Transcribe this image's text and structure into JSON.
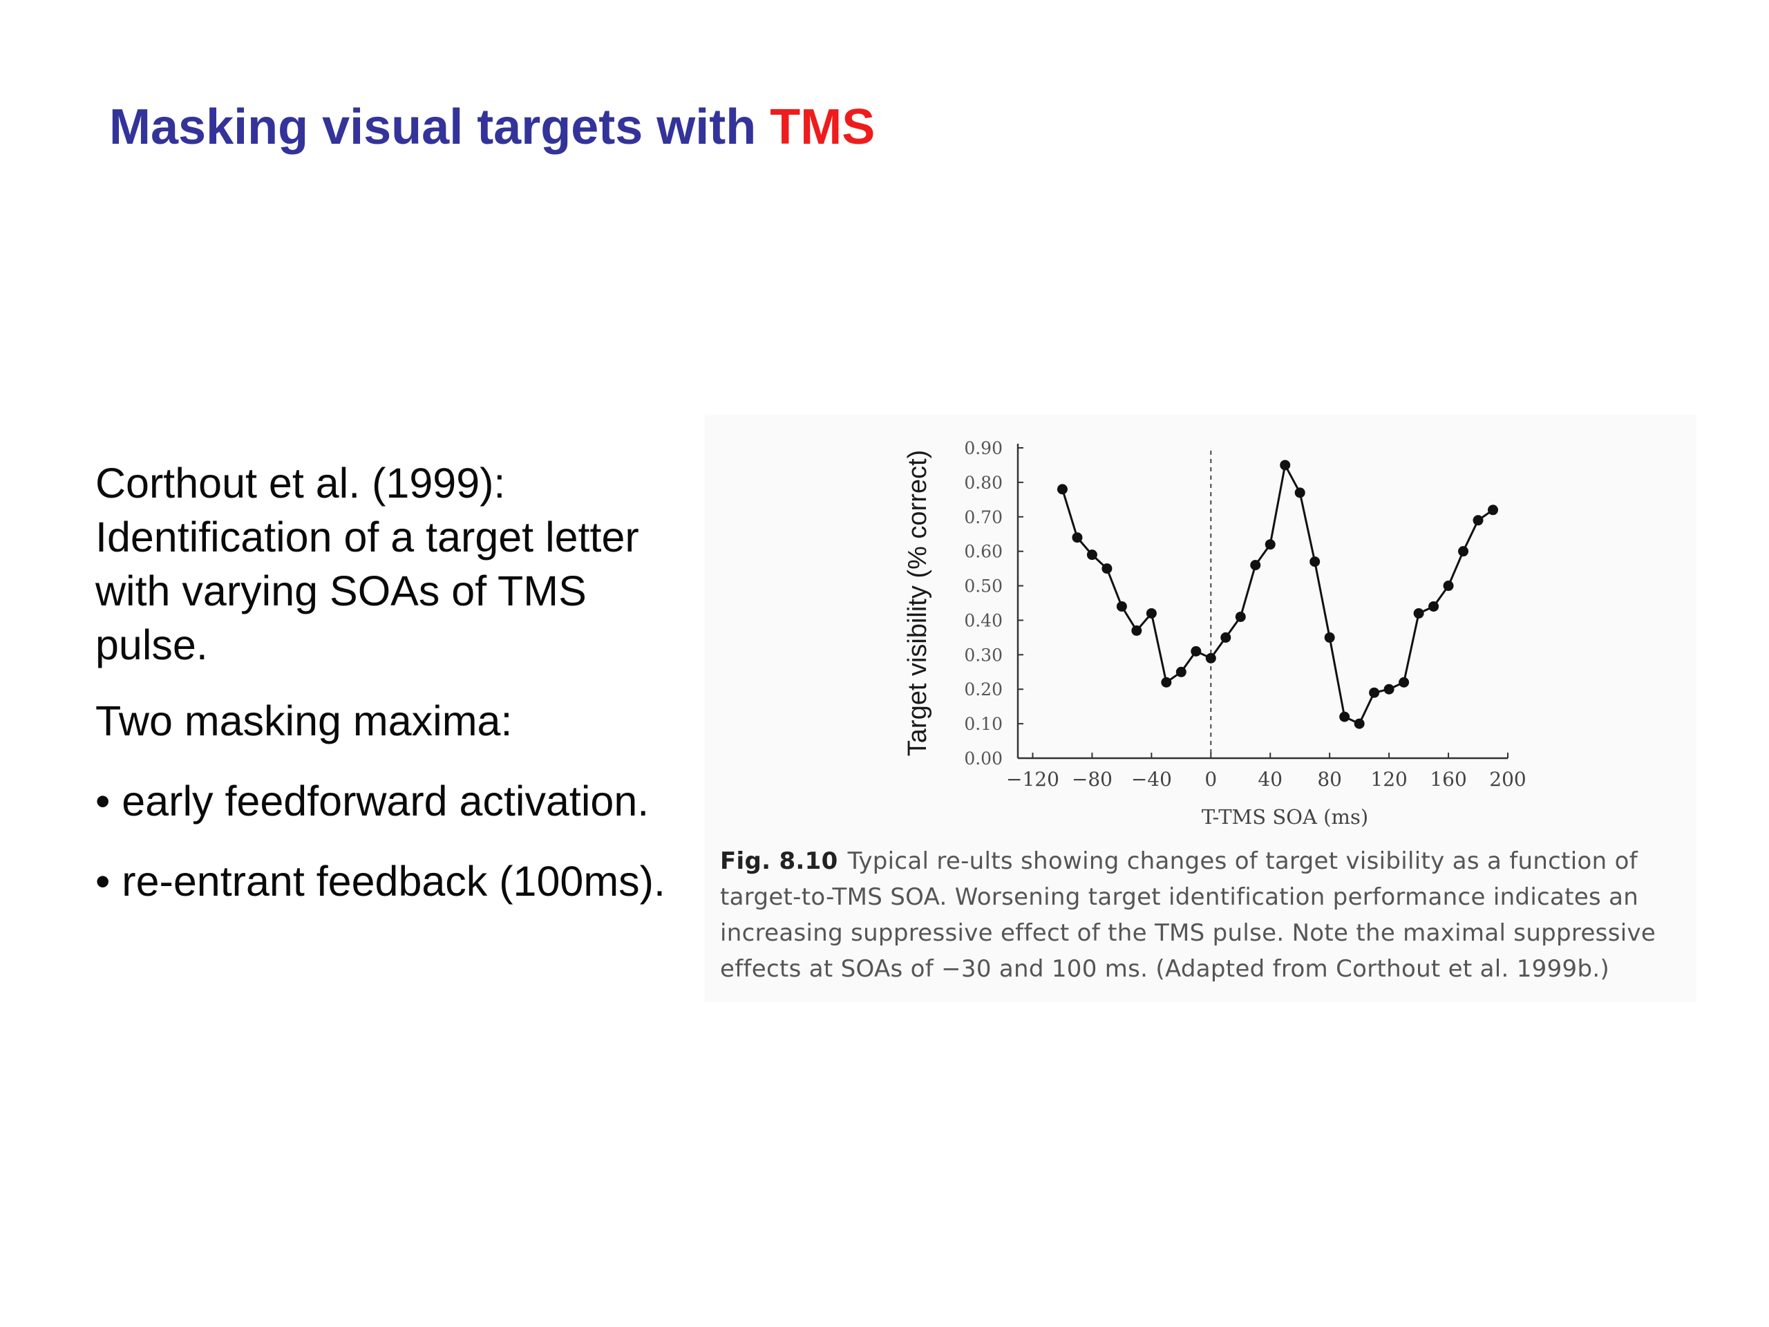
{
  "slide": {
    "title_main": "Masking visual targets with ",
    "title_accent": "TMS",
    "paragraphs": [
      "Corthout et al. (1999): Identification of a target letter with varying SOAs of TMS pulse.",
      "Two masking maxima:",
      "• early feedforward activation.",
      "• re-entrant feedback (100ms)."
    ]
  },
  "figure": {
    "caption_label": "Fig. 8.10",
    "caption_text": "Typical re-ults showing changes of target visibility as a function of target-to-TMS SOA. Worsening target identification performance indicates an increasing suppressive effect of the TMS pulse. Note the maximal suppressive effects at SOAs of −30 and 100 ms. (Adapted from Corthout et al. 1999b.)"
  },
  "chart_data": {
    "type": "line",
    "title": "",
    "xlabel": "T-TMS SOA (ms)",
    "ylabel": "Target visibility (% correct)",
    "xlim": [
      -130,
      200
    ],
    "ylim": [
      0,
      0.9
    ],
    "xticks": [
      -120,
      -80,
      -40,
      0,
      40,
      80,
      120,
      160,
      200
    ],
    "xtick_labels": [
      "−120",
      "−80",
      "−40",
      "0",
      "40",
      "80",
      "120",
      "160",
      "200"
    ],
    "yticks": [
      0,
      0.1,
      0.2,
      0.3,
      0.4,
      0.5,
      0.6,
      0.7,
      0.8,
      0.9
    ],
    "ytick_labels": [
      "0.00",
      "0.10",
      "0.20",
      "0.30",
      "0.40",
      "0.50",
      "0.60",
      "0.70",
      "0.80",
      "0.90"
    ],
    "reference_line_x": 0,
    "grid": false,
    "series": [
      {
        "x": [
          -100,
          -90,
          -80,
          -70,
          -60,
          -50,
          -40,
          -30,
          -20,
          -10,
          0,
          10,
          20,
          30,
          40,
          50,
          60,
          70,
          80,
          90,
          100,
          110,
          120,
          130,
          140,
          150,
          160,
          170,
          180,
          190
        ],
        "values": [
          0.78,
          0.64,
          0.59,
          0.55,
          0.44,
          0.37,
          0.42,
          0.22,
          0.25,
          0.31,
          0.29,
          0.35,
          0.41,
          0.56,
          0.62,
          0.85,
          0.77,
          0.57,
          0.35,
          0.12,
          0.1,
          0.19,
          0.2,
          0.22,
          0.42,
          0.44,
          0.5,
          0.6,
          0.69,
          0.72
        ]
      }
    ]
  }
}
